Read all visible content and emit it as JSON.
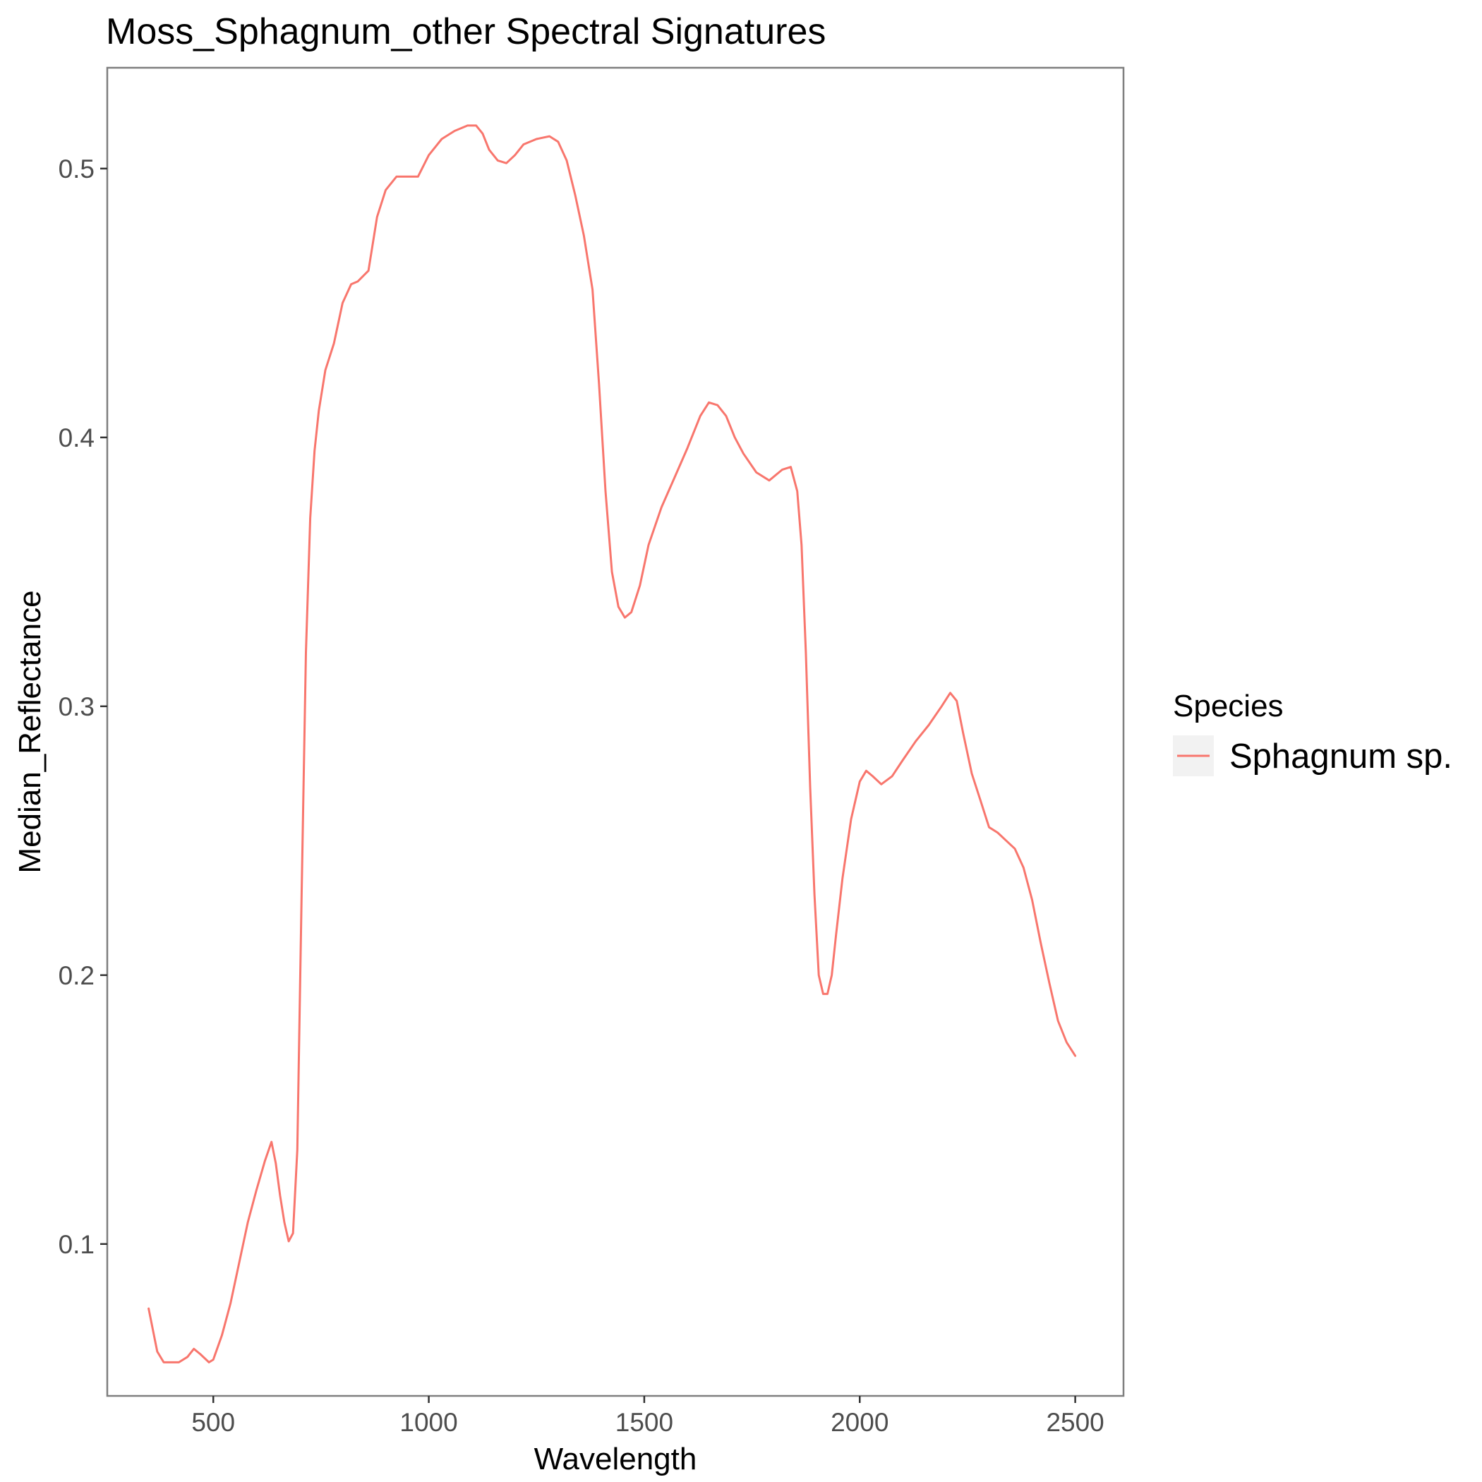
{
  "chart_data": {
    "type": "line",
    "title": "Moss_Sphagnum_other Spectral Signatures",
    "xlabel": "Wavelength",
    "ylabel": "Median_Reflectance",
    "xlim": [
      254,
      2612
    ],
    "ylim": [
      0.0435,
      0.5375
    ],
    "xticks": [
      500,
      1000,
      1500,
      2000,
      2500
    ],
    "yticks": [
      0.1,
      0.2,
      0.3,
      0.4,
      0.5
    ],
    "xtick_labels": [
      "500",
      "1000",
      "1500",
      "2000",
      "2500"
    ],
    "ytick_labels": [
      "0.1",
      "0.2",
      "0.3",
      "0.4",
      "0.5"
    ],
    "grid": false,
    "legend": {
      "title": "Species",
      "placement": "right"
    },
    "series": [
      {
        "name": "Sphagnum sp.",
        "color": "#F8766D",
        "x": [
          350,
          360,
          370,
          385,
          400,
          420,
          440,
          455,
          470,
          490,
          500,
          520,
          540,
          560,
          580,
          600,
          620,
          635,
          645,
          655,
          665,
          675,
          685,
          695,
          705,
          715,
          725,
          735,
          745,
          760,
          780,
          800,
          820,
          835,
          860,
          880,
          900,
          925,
          950,
          975,
          1000,
          1030,
          1060,
          1090,
          1110,
          1125,
          1140,
          1160,
          1180,
          1200,
          1220,
          1250,
          1280,
          1300,
          1320,
          1340,
          1360,
          1380,
          1395,
          1410,
          1425,
          1440,
          1455,
          1470,
          1490,
          1510,
          1540,
          1570,
          1600,
          1630,
          1650,
          1670,
          1690,
          1710,
          1730,
          1760,
          1790,
          1820,
          1840,
          1855,
          1865,
          1875,
          1885,
          1895,
          1905,
          1915,
          1925,
          1935,
          1945,
          1960,
          1980,
          2000,
          2015,
          2030,
          2050,
          2075,
          2100,
          2130,
          2160,
          2190,
          2210,
          2225,
          2240,
          2260,
          2280,
          2300,
          2320,
          2340,
          2360,
          2380,
          2400,
          2420,
          2440,
          2460,
          2480,
          2500
        ],
        "values": [
          0.076,
          0.068,
          0.06,
          0.056,
          0.056,
          0.056,
          0.058,
          0.061,
          0.059,
          0.056,
          0.057,
          0.066,
          0.078,
          0.093,
          0.108,
          0.12,
          0.131,
          0.138,
          0.13,
          0.118,
          0.108,
          0.101,
          0.104,
          0.135,
          0.23,
          0.32,
          0.37,
          0.395,
          0.41,
          0.425,
          0.435,
          0.45,
          0.457,
          0.458,
          0.462,
          0.482,
          0.492,
          0.497,
          0.497,
          0.497,
          0.505,
          0.511,
          0.514,
          0.516,
          0.516,
          0.513,
          0.507,
          0.503,
          0.502,
          0.505,
          0.509,
          0.511,
          0.512,
          0.51,
          0.503,
          0.49,
          0.475,
          0.455,
          0.42,
          0.38,
          0.35,
          0.337,
          0.333,
          0.335,
          0.345,
          0.36,
          0.374,
          0.385,
          0.396,
          0.408,
          0.413,
          0.412,
          0.408,
          0.4,
          0.394,
          0.387,
          0.384,
          0.388,
          0.389,
          0.38,
          0.36,
          0.32,
          0.27,
          0.23,
          0.2,
          0.193,
          0.193,
          0.2,
          0.215,
          0.236,
          0.258,
          0.272,
          0.276,
          0.274,
          0.271,
          0.274,
          0.28,
          0.287,
          0.293,
          0.3,
          0.305,
          0.302,
          0.29,
          0.275,
          0.265,
          0.255,
          0.253,
          0.25,
          0.247,
          0.24,
          0.228,
          0.212,
          0.197,
          0.183,
          0.175,
          0.17
        ]
      }
    ]
  }
}
